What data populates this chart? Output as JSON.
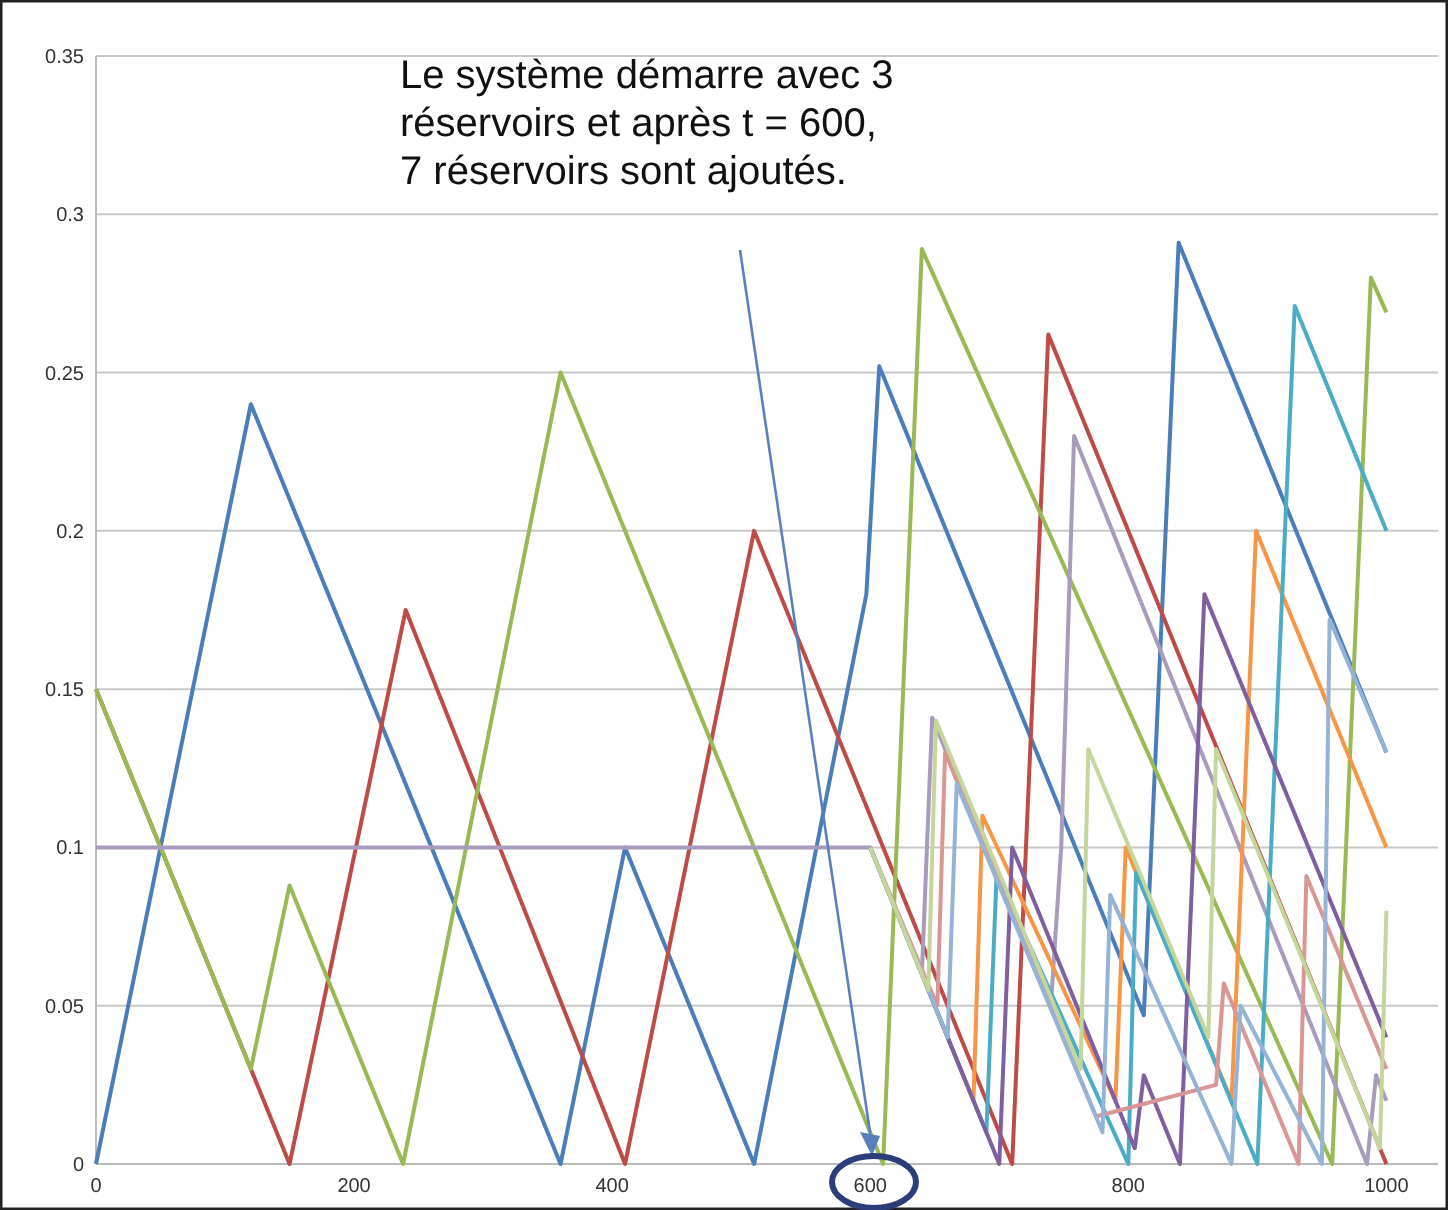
{
  "chart_data": {
    "type": "line",
    "annotations": [
      "Le système démarre avec 3\nréservoirs et après t = 600,\n7 réservoirs sont ajoutés."
    ],
    "xlim": [
      0,
      1040
    ],
    "xticks": [
      0,
      200,
      400,
      600,
      800,
      1000
    ],
    "ylim": [
      0,
      0.35
    ],
    "yticks": [
      0,
      0.05,
      0.1,
      0.15,
      0.2,
      0.25,
      0.3,
      0.35
    ],
    "grid": "y",
    "marker": "none",
    "line_style": "solid",
    "series": [
      {
        "color": "#4a7ebb",
        "x": [
          0,
          120,
          360,
          410,
          510,
          597,
          607,
          812,
          839,
          1000
        ],
        "values": [
          0,
          0.24,
          0,
          0.1,
          0,
          0.18,
          0.252,
          0.047,
          0.291,
          0.13
        ]
      },
      {
        "color": "#be4b48",
        "x": [
          0,
          150,
          240,
          410,
          510,
          710,
          738,
          1000
        ],
        "values": [
          0.15,
          0,
          0.175,
          0,
          0.2,
          0,
          0.262,
          0
        ]
      },
      {
        "color": "#98b954",
        "x": [
          0,
          120,
          150,
          238,
          360,
          610,
          640,
          958,
          988,
          1000
        ],
        "values": [
          0.15,
          0.03,
          0.088,
          0,
          0.25,
          0,
          0.289,
          0,
          0.28,
          0.269
        ]
      },
      {
        "color": "#a99bbd",
        "x": [
          0,
          600,
          640,
          648,
          740,
          748,
          758,
          985,
          992,
          1000
        ],
        "values": [
          0.1,
          0.1,
          0.06,
          0.141,
          0.05,
          0.1,
          0.23,
          0,
          0.028,
          0.02
        ]
      },
      {
        "color": "#f79646",
        "x": [
          600,
          680,
          687,
          790,
          798,
          880,
          899,
          1000
        ],
        "values": [
          0.1,
          0.02,
          0.11,
          0.02,
          0.1,
          0.02,
          0.2,
          0.1
        ]
      },
      {
        "color": "#4bacc6",
        "x": [
          600,
          690,
          698,
          800,
          806,
          900,
          929,
          1000
        ],
        "values": [
          0.1,
          0.01,
          0.092,
          0,
          0.092,
          0,
          0.271,
          0.2
        ]
      },
      {
        "color": "#7f5fa0",
        "x": [
          600,
          700,
          710,
          805,
          812,
          840,
          859,
          1000
        ],
        "values": [
          0.1,
          0,
          0.1,
          0.005,
          0.028,
          0,
          0.18,
          0.04
        ]
      },
      {
        "color": "#d99694",
        "x": [
          600,
          652,
          658,
          775,
          868,
          874,
          932,
          938,
          1000
        ],
        "values": [
          0.1,
          0.05,
          0.13,
          0.015,
          0.025,
          0.057,
          0,
          0.091,
          0.03
        ]
      },
      {
        "color": "#95b3d7",
        "x": [
          600,
          660,
          667,
          780,
          786,
          880,
          887,
          950,
          956,
          1000
        ],
        "values": [
          0.1,
          0.04,
          0.12,
          0.01,
          0.085,
          0,
          0.05,
          0,
          0.172,
          0.13
        ]
      },
      {
        "color": "#c3d69b",
        "x": [
          600,
          645,
          651,
          763,
          769,
          862,
          868,
          995,
          1000
        ],
        "values": [
          0.1,
          0.055,
          0.14,
          0.03,
          0.131,
          0.04,
          0.131,
          0.005,
          0.08
        ]
      }
    ]
  }
}
